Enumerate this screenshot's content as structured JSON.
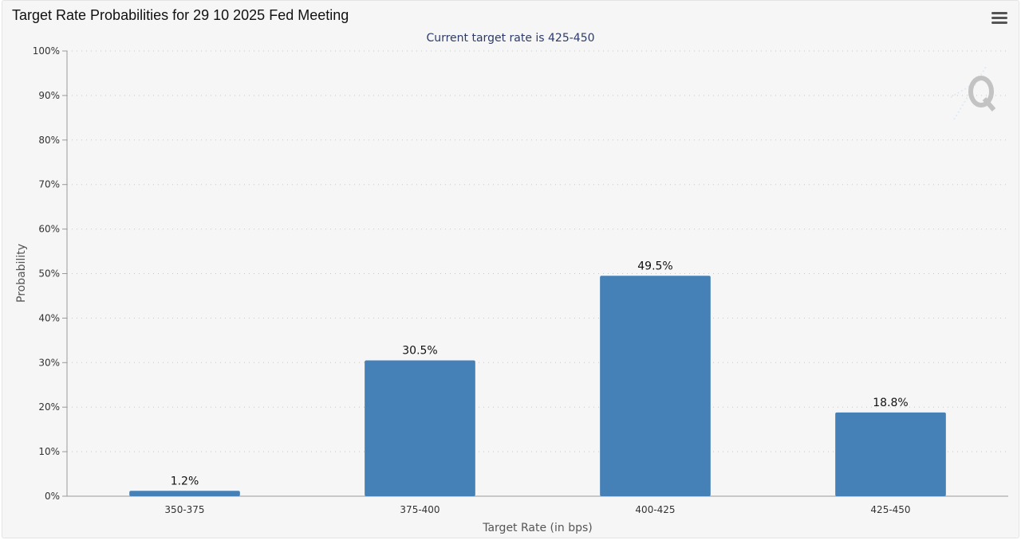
{
  "chart": {
    "title": "Target Rate Probabilities for 29 10 2025 Fed Meeting",
    "subtitle": "Current target rate is 425-450",
    "menu_icon": "hamburger-menu-icon",
    "watermark_icon": "q-logo-icon"
  },
  "colors": {
    "bar": "#4580b6",
    "grid": "#c8c8c8",
    "axis": "#9a9a9a",
    "background": "#f6f6f6"
  },
  "chart_data": {
    "type": "bar",
    "title": "Target Rate Probabilities for 29 10 2025 Fed Meeting",
    "subtitle": "Current target rate is 425-450",
    "categories": [
      "350-375",
      "375-400",
      "400-425",
      "425-450"
    ],
    "values": [
      1.2,
      30.5,
      49.5,
      18.8
    ],
    "value_labels": [
      "1.2%",
      "30.5%",
      "49.5%",
      "18.8%"
    ],
    "xlabel": "Target Rate (in bps)",
    "ylabel": "Probability",
    "ylim": [
      0,
      100
    ],
    "yticks": [
      0,
      10,
      20,
      30,
      40,
      50,
      60,
      70,
      80,
      90,
      100
    ],
    "ytick_labels": [
      "0%",
      "10%",
      "20%",
      "30%",
      "40%",
      "50%",
      "60%",
      "70%",
      "80%",
      "90%",
      "100%"
    ],
    "grid": true,
    "grid_style": "dotted",
    "legend": "none"
  }
}
